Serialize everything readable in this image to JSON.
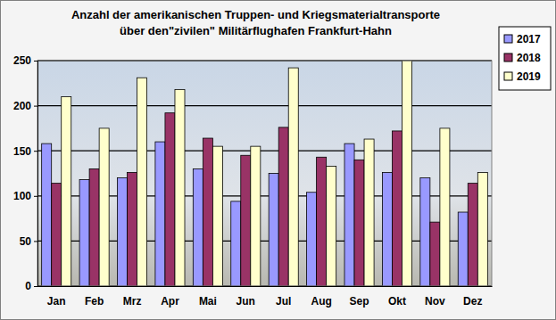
{
  "chart_data": {
    "type": "bar",
    "title": "Anzahl der  amerikanischen Truppen- und Kriegsmaterialtransporte\nüber den\"zivilen\" Militärflughafen Frankfurt-Hahn",
    "categories": [
      "Jan",
      "Feb",
      "Mrz",
      "Apr",
      "Mai",
      "Jun",
      "Jul",
      "Aug",
      "Sep",
      "Okt",
      "Nov",
      "Dez"
    ],
    "series": [
      {
        "name": "2017",
        "color": "#9999ff",
        "values": [
          158,
          118,
          120,
          160,
          130,
          94,
          125,
          104,
          158,
          126,
          120,
          82
        ]
      },
      {
        "name": "2018",
        "color": "#993366",
        "values": [
          114,
          130,
          126,
          192,
          164,
          145,
          176,
          143,
          140,
          172,
          71,
          114
        ]
      },
      {
        "name": "2019",
        "color": "#ffffcc",
        "values": [
          210,
          175,
          231,
          218,
          155,
          155,
          242,
          133,
          163,
          250,
          175,
          126
        ]
      }
    ],
    "ylim": [
      0,
      250
    ],
    "yticks": [
      0,
      50,
      100,
      150,
      200,
      250
    ],
    "grid": true,
    "legend": "upper right"
  }
}
